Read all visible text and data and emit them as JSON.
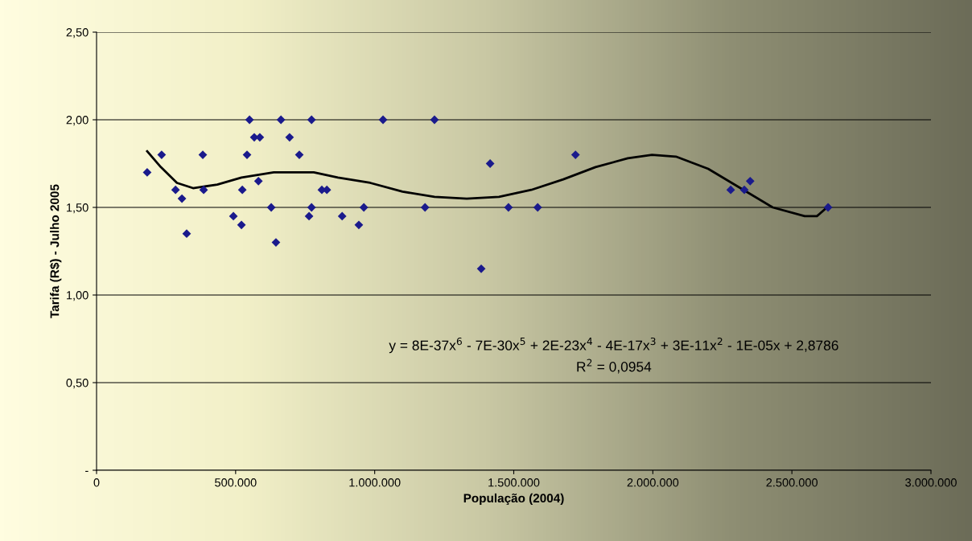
{
  "chart_data": {
    "type": "scatter",
    "xlabel": "População (2004)",
    "ylabel": "Tarifa (R$) - Julho 2005",
    "xlim": [
      0,
      3000000
    ],
    "xticks": [
      {
        "value": 0,
        "label": "0"
      },
      {
        "value": 500000,
        "label": "500.000"
      },
      {
        "value": 1000000,
        "label": "1.000.000"
      },
      {
        "value": 1500000,
        "label": "1.500.000"
      },
      {
        "value": 2000000,
        "label": "2.000.000"
      },
      {
        "value": 2500000,
        "label": "2.500.000"
      },
      {
        "value": 3000000,
        "label": "3.000.000"
      }
    ],
    "ylim": [
      0,
      2.5
    ],
    "yticks": [
      {
        "value": 0,
        "label": "-"
      },
      {
        "value": 0.5,
        "label": "0,50"
      },
      {
        "value": 1.0,
        "label": "1,00"
      },
      {
        "value": 1.5,
        "label": "1,50"
      },
      {
        "value": 2.0,
        "label": "2,00"
      },
      {
        "value": 2.5,
        "label": "2,50"
      }
    ],
    "grid": "y",
    "legend": false,
    "annotations": [
      "y = 8E-37x$^{6}$ - 7E-30x$^{5}$ + 2E-23x$^{4}$ - 4E-17x$^{3}$ + 3E-11x$^{2}$ - 1E-05x + 2,8786",
      "R$^{2}$ = 0,0954"
    ],
    "series": [
      {
        "color": "#1a1a8c",
        "marker": "diamond",
        "x": [
          182000,
          234000,
          284000,
          307000,
          324000,
          382000,
          385000,
          492000,
          521000,
          524000,
          541000,
          550000,
          567000,
          587000,
          582000,
          628000,
          645000,
          663000,
          694000,
          729000,
          764000,
          773000,
          773000,
          810000,
          828000,
          883000,
          943000,
          961000,
          1030000,
          1181000,
          1215000,
          1383000,
          1415000,
          1481000,
          1586000,
          1722000,
          2280000,
          2329000,
          2350000,
          2630000
        ],
        "values": [
          1.7,
          1.8,
          1.6,
          1.55,
          1.35,
          1.8,
          1.6,
          1.45,
          1.4,
          1.6,
          1.8,
          2.0,
          1.9,
          1.9,
          1.65,
          1.5,
          1.3,
          2.0,
          1.9,
          1.8,
          1.45,
          2.0,
          1.5,
          1.6,
          1.6,
          1.45,
          1.4,
          1.5,
          2.0,
          1.5,
          2.0,
          1.15,
          1.75,
          1.5,
          1.5,
          1.8,
          1.6,
          1.6,
          1.65,
          1.5
        ]
      },
      {
        "type": "line",
        "color": "#000000",
        "marker": "none",
        "line_style": "solid",
        "x": [
          182000,
          231000,
          289000,
          347000,
          434000,
          521000,
          637000,
          781000,
          868000,
          984000,
          1100000,
          1215000,
          1331000,
          1447000,
          1563000,
          1678000,
          1794000,
          1910000,
          1997000,
          2083000,
          2199000,
          2315000,
          2431000,
          2546000,
          2590000,
          2633000
        ],
        "values": [
          1.82,
          1.73,
          1.64,
          1.61,
          1.63,
          1.67,
          1.7,
          1.7,
          1.67,
          1.64,
          1.59,
          1.56,
          1.55,
          1.56,
          1.6,
          1.66,
          1.73,
          1.78,
          1.8,
          1.79,
          1.72,
          1.61,
          1.5,
          1.45,
          1.45,
          1.51
        ]
      }
    ]
  }
}
